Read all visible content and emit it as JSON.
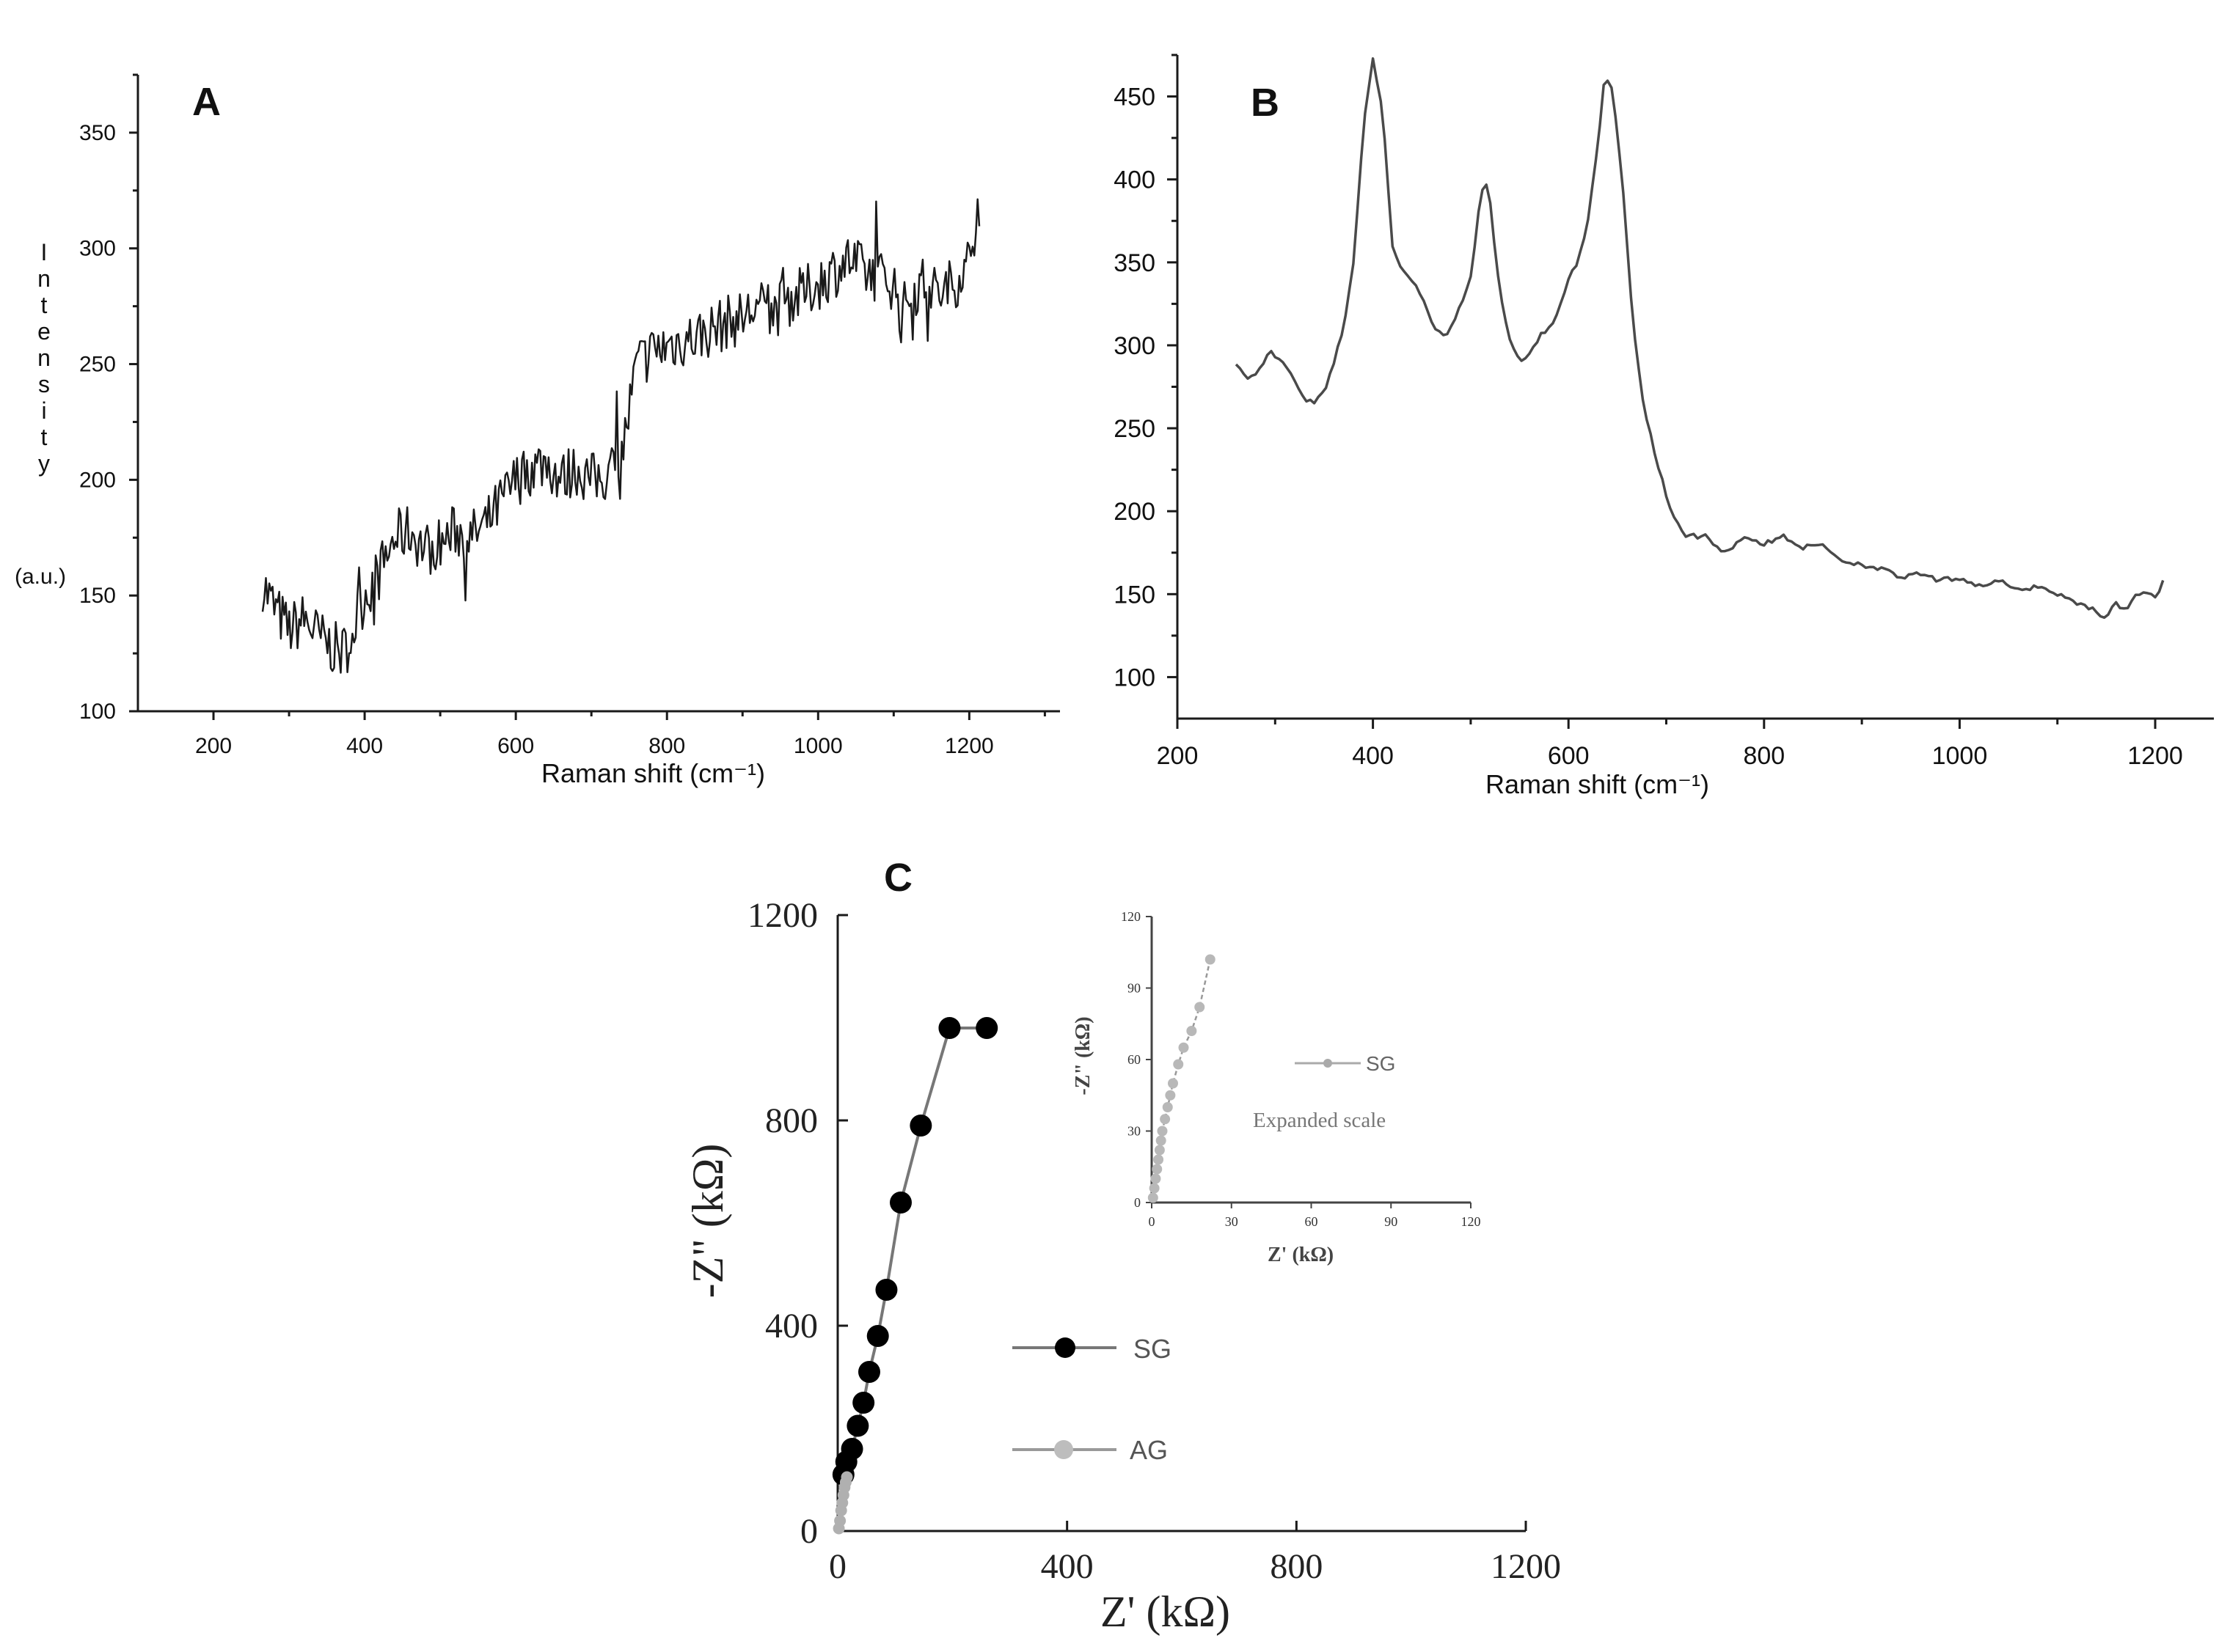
{
  "chart_data": [
    {
      "panel": "A",
      "type": "line",
      "title": "",
      "xlabel": "Raman shift (cm⁻¹)",
      "ylabel": "Intensity",
      "ylabel_unit": "(a.u.)",
      "xlim": [
        100,
        1320
      ],
      "ylim": [
        100,
        375
      ],
      "xticks": [
        200,
        400,
        600,
        800,
        1000,
        1200
      ],
      "yticks": [
        100,
        150,
        200,
        250,
        300,
        350
      ],
      "grid": false,
      "color": "#1a1a1a",
      "x": [
        265,
        280,
        300,
        320,
        340,
        355,
        370,
        380,
        400,
        420,
        440,
        460,
        480,
        500,
        520,
        540,
        560,
        580,
        600,
        620,
        640,
        660,
        680,
        700,
        720,
        740,
        760,
        780,
        800,
        820,
        840,
        860,
        880,
        900,
        920,
        940,
        960,
        980,
        1000,
        1020,
        1040,
        1060,
        1080,
        1100,
        1110,
        1120,
        1140,
        1160,
        1180,
        1200,
        1215
      ],
      "y": [
        155,
        145,
        135,
        140,
        132,
        128,
        125,
        130,
        150,
        160,
        175,
        178,
        170,
        172,
        178,
        175,
        180,
        190,
        200,
        205,
        208,
        200,
        205,
        200,
        202,
        210,
        250,
        255,
        258,
        260,
        262,
        265,
        268,
        270,
        275,
        272,
        278,
        280,
        285,
        290,
        295,
        290,
        288,
        285,
        270,
        280,
        285,
        280,
        285,
        295,
        325
      ],
      "noise_amplitude": 12
    },
    {
      "panel": "B",
      "type": "line",
      "title": "",
      "xlabel": "Raman shift (cm⁻¹)",
      "ylabel": "",
      "xlim": [
        200,
        1260
      ],
      "ylim": [
        75,
        475
      ],
      "xticks": [
        200,
        400,
        600,
        800,
        1000,
        1200
      ],
      "yticks": [
        100,
        150,
        200,
        250,
        300,
        350,
        400,
        450
      ],
      "grid": false,
      "color": "#4a4a4a",
      "x": [
        260,
        270,
        285,
        295,
        305,
        315,
        330,
        340,
        350,
        360,
        370,
        380,
        390,
        400,
        410,
        420,
        430,
        440,
        450,
        460,
        470,
        480,
        490,
        500,
        510,
        515,
        520,
        530,
        540,
        550,
        560,
        570,
        580,
        590,
        600,
        610,
        620,
        630,
        637,
        645,
        655,
        665,
        675,
        690,
        705,
        720,
        740,
        760,
        780,
        800,
        820,
        840,
        860,
        880,
        900,
        920,
        940,
        960,
        980,
        1000,
        1020,
        1040,
        1060,
        1080,
        1100,
        1120,
        1140,
        1150,
        1160,
        1170,
        1180,
        1190,
        1200,
        1210
      ],
      "y": [
        290,
        280,
        285,
        298,
        290,
        285,
        268,
        265,
        272,
        290,
        310,
        350,
        430,
        472,
        440,
        360,
        345,
        340,
        330,
        315,
        305,
        310,
        325,
        340,
        390,
        400,
        385,
        330,
        305,
        290,
        295,
        305,
        310,
        320,
        340,
        350,
        375,
        420,
        462,
        455,
        400,
        320,
        270,
        230,
        200,
        185,
        185,
        175,
        185,
        180,
        185,
        178,
        180,
        170,
        168,
        165,
        160,
        162,
        158,
        160,
        155,
        158,
        152,
        155,
        150,
        145,
        140,
        135,
        145,
        140,
        150,
        150,
        148,
        160
      ]
    },
    {
      "panel": "C",
      "type": "scatter",
      "title": "",
      "xlabel": "Z' (kΩ)",
      "ylabel": "-Z\" (kΩ)",
      "xlim": [
        0,
        1200
      ],
      "ylim": [
        0,
        1200
      ],
      "xticks": [
        0,
        400,
        800,
        1200
      ],
      "yticks": [
        0,
        400,
        800,
        1200
      ],
      "grid": false,
      "legend_position": "center-right",
      "series": [
        {
          "name": "SG",
          "color": "#000000",
          "x": [
            10,
            15,
            25,
            35,
            45,
            55,
            70,
            85,
            110,
            145,
            195,
            260
          ],
          "y": [
            110,
            135,
            160,
            205,
            250,
            310,
            380,
            470,
            640,
            790,
            980,
            980
          ]
        },
        {
          "name": "AG",
          "color": "#b0b0b0",
          "x": [
            2,
            4,
            6,
            8,
            10,
            12,
            14,
            16
          ],
          "y": [
            5,
            20,
            40,
            55,
            70,
            85,
            95,
            105
          ]
        }
      ]
    },
    {
      "panel": "C-inset",
      "type": "scatter",
      "title": "",
      "annotation": "Expanded scale",
      "xlabel": "Z' (kΩ)",
      "ylabel": "-Z\" (kΩ)",
      "xlim": [
        0,
        120
      ],
      "ylim": [
        0,
        120
      ],
      "xticks": [
        0,
        30,
        60,
        90,
        120
      ],
      "yticks": [
        0,
        30,
        60,
        90,
        120
      ],
      "grid": false,
      "legend_position": "top-right",
      "series": [
        {
          "name": "SG",
          "color": "#b8b8b8",
          "x": [
            0.5,
            1,
            1.5,
            2,
            2.5,
            3,
            3.5,
            4,
            5,
            6,
            7,
            8,
            10,
            12,
            15,
            18,
            22
          ],
          "y": [
            2,
            6,
            10,
            14,
            18,
            22,
            26,
            30,
            35,
            40,
            45,
            50,
            58,
            65,
            72,
            82,
            102
          ]
        }
      ]
    }
  ],
  "panels": {
    "a": {
      "letter": "A"
    },
    "b": {
      "letter": "B"
    },
    "c": {
      "letter": "C"
    }
  },
  "legend_c": {
    "sg": "SG",
    "ag": "AG"
  },
  "legend_inset": {
    "sg": "SG"
  }
}
